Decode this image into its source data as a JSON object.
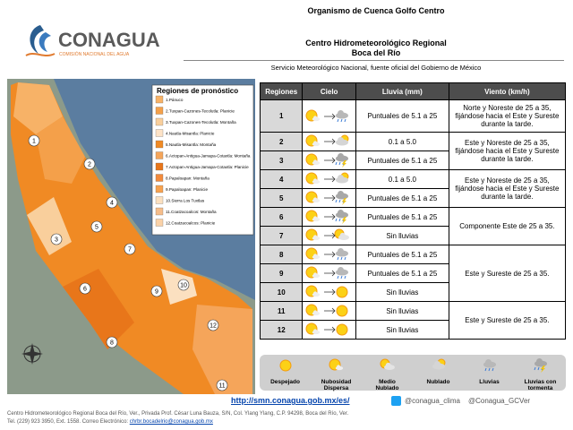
{
  "header": {
    "logo": "CONAGUA",
    "logo_subtitle": "COMISIÓN NACIONAL DEL AGUA",
    "org": "Organismo de Cuenca Golfo Centro",
    "center": "Centro Hidrometeorológico Regional",
    "city": "Boca del Río",
    "service": "Servicio Meteorológico Nacional, fuente oficial del Gobierno de México"
  },
  "map": {
    "legend_title": "Regiones de pronóstico",
    "regions": [
      {
        "label": "1.Pánuco",
        "color": "#f7b267"
      },
      {
        "label": "2.Tuxpan-Cazones-Tecolutla: Planicie",
        "color": "#f4a04a"
      },
      {
        "label": "3.Tuxpan-Cazones-Tecolutla: Montaña",
        "color": "#f9cf9c"
      },
      {
        "label": "4.Nautla-Misantla: Planicie",
        "color": "#fde3c7"
      },
      {
        "label": "5.Nautla-Misantla: Montaña",
        "color": "#f08a24"
      },
      {
        "label": "6.Actopan-Antigua-Jamapa-Cotaxtla: Montaña",
        "color": "#f5a55a"
      },
      {
        "label": "7.Actopan-Antigua-Jamapa-Cotaxtla: Planicie",
        "color": "#e8761a"
      },
      {
        "label": "8.Papaloapan: Montaña",
        "color": "#f38b3c"
      },
      {
        "label": "9.Papaloapan: Planicie",
        "color": "#f7a24f"
      },
      {
        "label": "10.Sierra Los Tuxtlas",
        "color": "#fbe0c0"
      },
      {
        "label": "11.Coatzacoalcos: Montaña",
        "color": "#f6bd8a"
      },
      {
        "label": "12.Coatzacoalcos: Planicie",
        "color": "#fad2a8"
      }
    ],
    "markers": [
      "1",
      "2",
      "3",
      "4",
      "5",
      "6",
      "7",
      "8",
      "9",
      "10",
      "11",
      "12"
    ]
  },
  "table": {
    "headers": [
      "Regiones",
      "Cielo",
      "Lluvia (mm)",
      "Viento (km/h)"
    ],
    "groups": [
      {
        "viento": "Norte y Noreste de 25 a 35, fijándose hacia el Este y Sureste durante la tarde.",
        "rows": [
          {
            "region": "1",
            "cielo": [
              "Nubosidad Dispersa",
              "Lluvias"
            ],
            "lluvia": "Puntuales de 5.1 a 25"
          }
        ]
      },
      {
        "viento": "Este y Noreste de 25 a 35, fijándose hacia el Este y Sureste durante la tarde.",
        "rows": [
          {
            "region": "2",
            "cielo": [
              "Nubosidad Dispersa",
              "Nublado"
            ],
            "lluvia": "0.1 a 5.0"
          },
          {
            "region": "3",
            "cielo": [
              "Nubosidad Dispersa",
              "Lluvias con tormenta"
            ],
            "lluvia": "Puntuales de 5.1 a 25"
          }
        ]
      },
      {
        "viento": "Este y Noreste de 25 a 35, fijándose hacia el Este y Sureste durante la tarde.",
        "rows": [
          {
            "region": "4",
            "cielo": [
              "Nubosidad Dispersa",
              "Nublado"
            ],
            "lluvia": "0.1 a 5.0"
          },
          {
            "region": "5",
            "cielo": [
              "Nubosidad Dispersa",
              "Lluvias con tormenta"
            ],
            "lluvia": "Puntuales de 5.1 a 25"
          }
        ]
      },
      {
        "viento": "Componente Este de 25 a 35.",
        "rows": [
          {
            "region": "6",
            "cielo": [
              "Nubosidad Dispersa",
              "Lluvias con tormenta"
            ],
            "lluvia": "Puntuales de 5.1 a 25"
          },
          {
            "region": "7",
            "cielo": [
              "Nubosidad Dispersa",
              "Medio Nublado"
            ],
            "lluvia": "Sin lluvias"
          }
        ]
      },
      {
        "viento": "Este y Sureste de 25 a 35.",
        "rows": [
          {
            "region": "8",
            "cielo": [
              "Nubosidad Dispersa",
              "Lluvias"
            ],
            "lluvia": "Puntuales de 5.1 a 25"
          },
          {
            "region": "9",
            "cielo": [
              "Nubosidad Dispersa",
              "Lluvias"
            ],
            "lluvia": "Puntuales de 5.1 a 25"
          },
          {
            "region": "10",
            "cielo": [
              "Nubosidad Dispersa",
              "Despejado"
            ],
            "lluvia": "Sin lluvias"
          }
        ]
      },
      {
        "viento": "Este y Sureste de 25 a 35.",
        "rows": [
          {
            "region": "11",
            "cielo": [
              "Nubosidad Dispersa",
              "Despejado"
            ],
            "lluvia": "Sin lluvias"
          },
          {
            "region": "12",
            "cielo": [
              "Nubosidad Dispersa",
              "Despejado"
            ],
            "lluvia": "Sin lluvias"
          }
        ]
      }
    ]
  },
  "sky_legend": [
    "Despejado",
    "Nubosidad Dispersa",
    "Medio Nublado",
    "Nublado",
    "Lluvias",
    "Lluvias con tormenta"
  ],
  "footer": {
    "url": "http://smn.conagua.gob.mx/es/",
    "social": [
      "@conagua_clima",
      "@Conagua_GCVer"
    ],
    "address": "Centro Hidrometeorológico Regional Boca del Río, Ver., Privada Prof. César Luna Bauza, S/N, Col. Ylang Ylang, C.P. 94298, Boca del Río, Ver.",
    "phone": "Tel. (229) 923 3950, Ext. 1558. Correo Electrónico:",
    "email": "chrbr.bocadelrio@conagua.gob.mx"
  }
}
